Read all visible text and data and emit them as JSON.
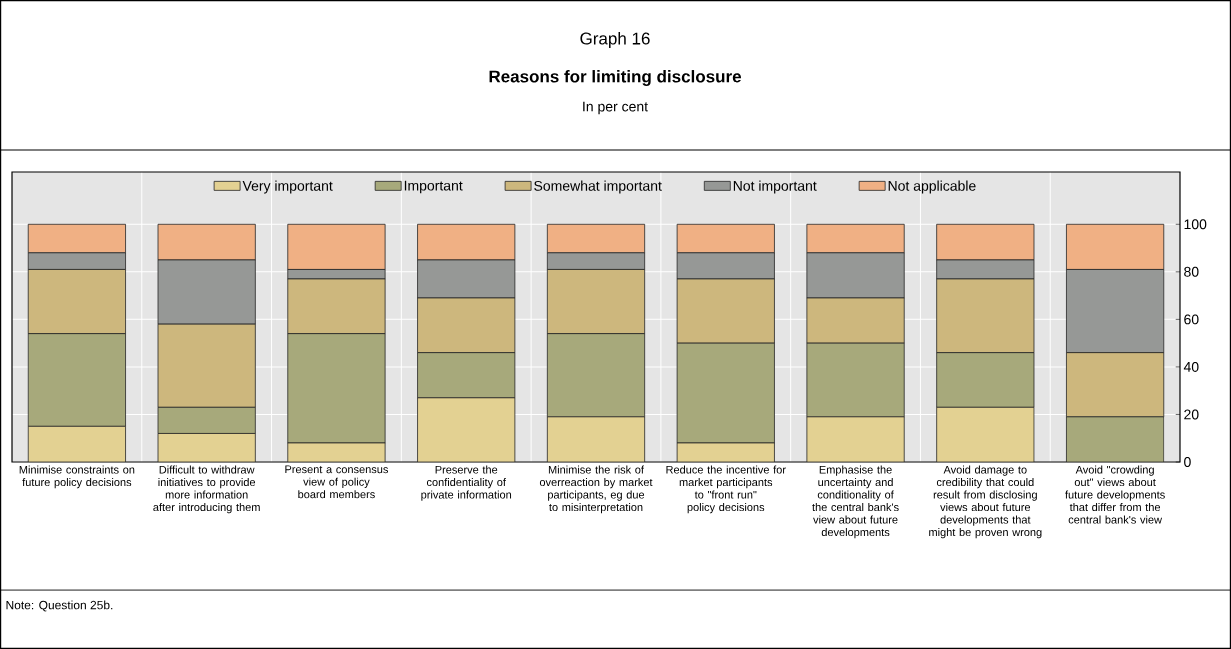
{
  "chart_data": {
    "type": "bar",
    "title": "Reasons for limiting disclosure",
    "subtitle": "In per cent",
    "annotations": [
      "Graph 16",
      "Note: Question 25b."
    ],
    "categories": [
      "Minimise constraints on future policy decisions",
      "Difficult to withdraw initiatives to provide more information after introducing them",
      "Present a consensus view of policy board members",
      "Preserve the confidentiality of private information",
      "Minimise the risk of overreaction by market participants, eg due to misinterpretation",
      "Reduce the incentive for market participants to \"front run\" policy decisions",
      "Emphasise the uncertainty and conditionality of the central bank's view about future developments",
      "Avoid damage to credibility that could result from disclosing views about future developments that might be proven wrong",
      "Avoid \"crowding out\" views about future developments that differ from the central bank's view"
    ],
    "stacked": true,
    "series": [
      {
        "name": "Very important",
        "color": "#e3d192",
        "values": [
          15,
          12,
          8,
          27,
          19,
          8,
          19,
          23,
          0
        ]
      },
      {
        "name": "Important",
        "color": "#a7a97b",
        "values": [
          39,
          11,
          46,
          19,
          35,
          42,
          31,
          23,
          19
        ]
      },
      {
        "name": "Somewhat important",
        "color": "#cdb77d",
        "values": [
          27,
          35,
          23,
          23,
          27,
          27,
          19,
          31,
          27
        ]
      },
      {
        "name": "Not important",
        "color": "#969896",
        "values": [
          7,
          27,
          4,
          16,
          7,
          11,
          19,
          8,
          35
        ]
      },
      {
        "name": "Not applicable",
        "color": "#f0b084",
        "values": [
          12,
          15,
          19,
          15,
          12,
          12,
          12,
          15,
          19
        ]
      }
    ],
    "ylim": [
      0,
      122
    ],
    "yticks": [
      0,
      20,
      40,
      60,
      80,
      100
    ],
    "grid": true,
    "legend": "top"
  }
}
